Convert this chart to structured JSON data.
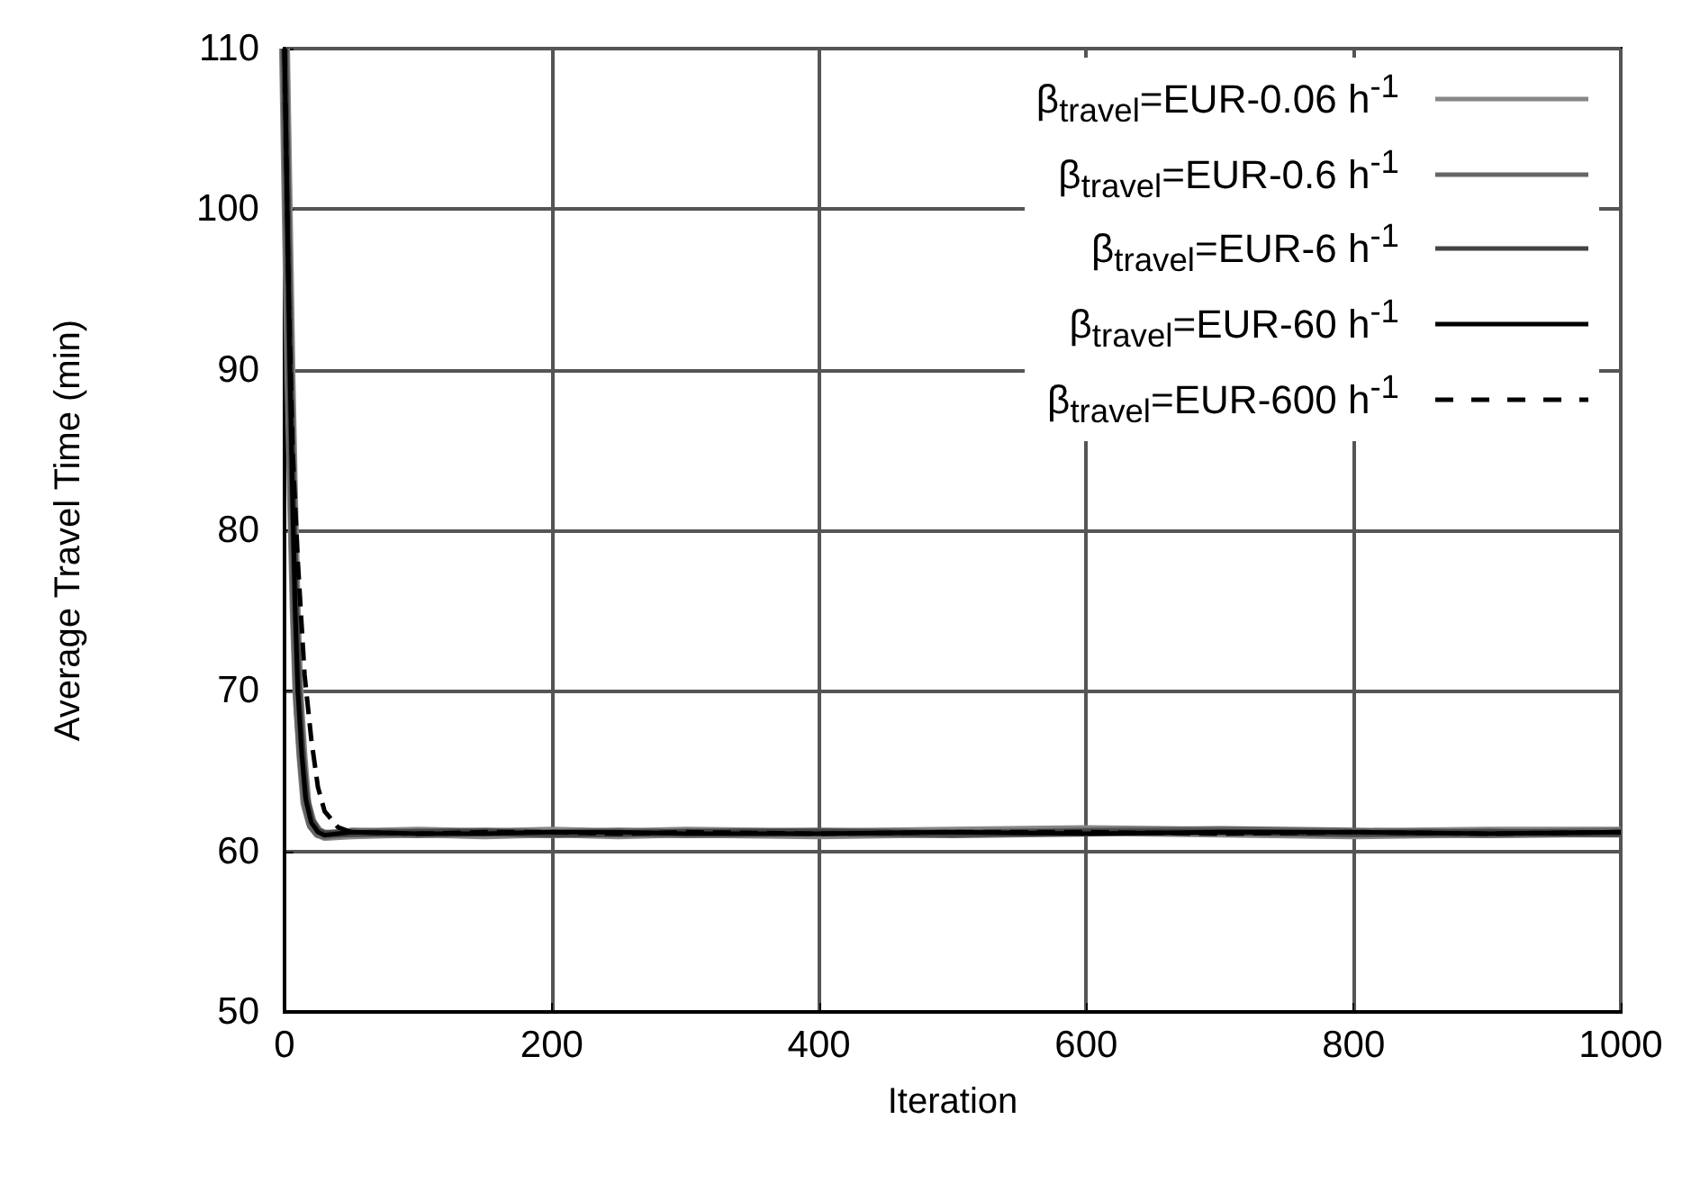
{
  "chart_data": {
    "type": "line",
    "xlabel": "Iteration",
    "ylabel": "Average Travel Time (min)",
    "xlim": [
      0,
      1000
    ],
    "xticks": [
      0,
      200,
      400,
      600,
      800,
      1000
    ],
    "ylim": [
      50,
      110
    ],
    "yticks": [
      50,
      60,
      70,
      80,
      90,
      100,
      110
    ],
    "grid": true,
    "legend": "top right",
    "marker": "none",
    "x": [
      0,
      2,
      4,
      6,
      8,
      10,
      13,
      16,
      20,
      25,
      30,
      50,
      100,
      150,
      200,
      250,
      300,
      400,
      500,
      600,
      700,
      800,
      900,
      1000
    ],
    "series": [
      {
        "name": "β$_{travel}$=EUR-0.06 h$^{-1}$",
        "color": "#888888",
        "line_style": "solid",
        "values": [
          110,
          100,
          90,
          82,
          75,
          70,
          66,
          63,
          61.8,
          61.2,
          61,
          61.1,
          61.2,
          61.1,
          61.2,
          61.1,
          61.2,
          61.1,
          61.2,
          61.3,
          61.2,
          61.1,
          61.2,
          61.2
        ]
      },
      {
        "name": "β$_{travel}$=EUR-0.6 h$^{-1}$",
        "color": "#666666",
        "line_style": "solid",
        "values": [
          110,
          99,
          89,
          81,
          74,
          69,
          65.5,
          63,
          61.6,
          61.1,
          61,
          61.2,
          61.1,
          61.2,
          61.1,
          61.2,
          61.1,
          61.2,
          61.1,
          61.2,
          61.3,
          61.2,
          61.1,
          61.2
        ]
      },
      {
        "name": "β$_{travel}$=EUR-6 h$^{-1}$",
        "color": "#444444",
        "line_style": "solid",
        "values": [
          110,
          101,
          91,
          83,
          76,
          71,
          66.5,
          63.5,
          62,
          61.3,
          61.1,
          61.1,
          61.2,
          61.2,
          61.1,
          61.1,
          61.2,
          61.2,
          61.1,
          61.2,
          61.2,
          61.1,
          61.2,
          61.1
        ]
      },
      {
        "name": "β$_{travel}$=EUR-60 h$^{-1}$",
        "color": "#000000",
        "line_style": "solid",
        "values": [
          110,
          100,
          90,
          82,
          75,
          70,
          66,
          63.2,
          61.8,
          61.2,
          61,
          61.2,
          61.1,
          61.1,
          61.2,
          61.2,
          61.1,
          61.1,
          61.2,
          61.1,
          61.2,
          61.2,
          61.1,
          61.2
        ]
      },
      {
        "name": "β$_{travel}$=EUR-600 h$^{-1}$",
        "color": "#000000",
        "line_style": "dashed",
        "x": [
          0,
          3,
          6,
          10,
          15,
          20,
          25,
          30,
          40,
          50,
          100,
          150,
          200,
          250,
          300,
          400,
          500,
          600,
          700,
          800,
          900,
          1000
        ],
        "values": [
          110,
          95,
          85,
          78,
          71,
          67,
          64,
          62.5,
          61.5,
          61.2,
          61.1,
          61.2,
          61.2,
          61.1,
          61.2,
          61.1,
          61.2,
          61.2,
          61.1,
          61.2,
          61.1,
          61.2
        ]
      }
    ]
  }
}
